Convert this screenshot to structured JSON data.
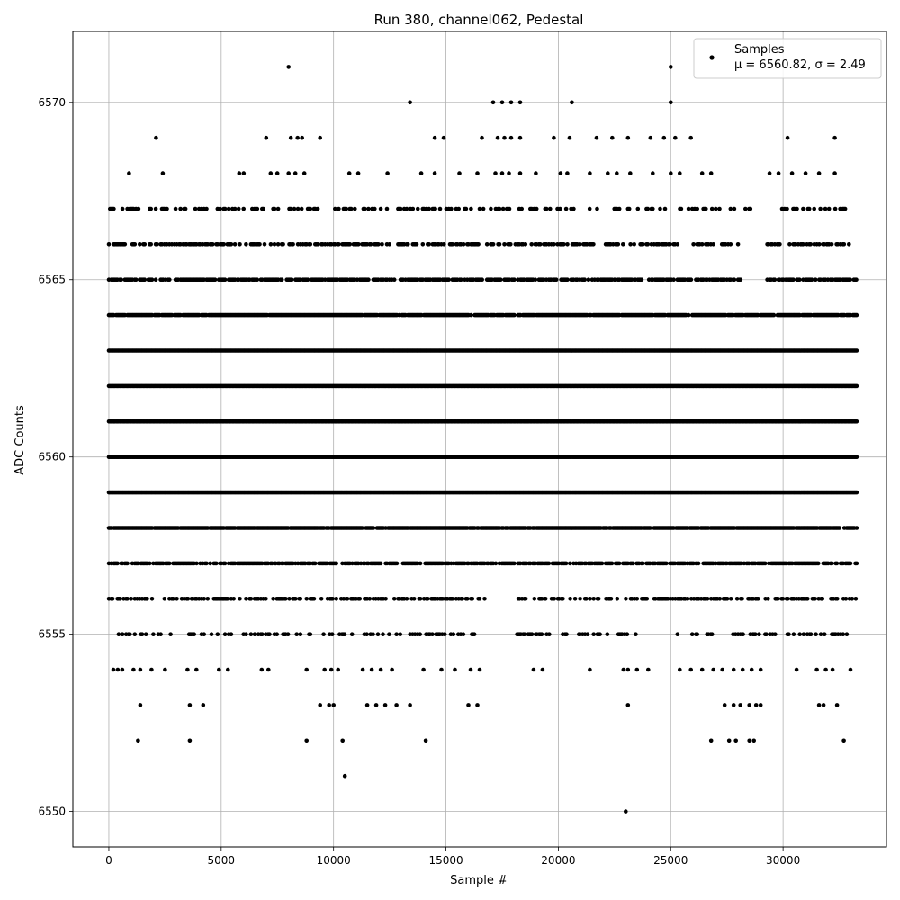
{
  "chart_data": {
    "type": "scatter",
    "title": "Run 380, channel062, Pedestal",
    "xlabel": "Sample #",
    "ylabel": "ADC Counts",
    "xlim": [
      -1600,
      34600
    ],
    "ylim": [
      6549,
      6572
    ],
    "xticks": [
      0,
      5000,
      10000,
      15000,
      20000,
      25000,
      30000
    ],
    "yticks": [
      6550,
      6555,
      6560,
      6565,
      6570
    ],
    "grid": true,
    "legend": {
      "placement": "top-right",
      "label": "Samples",
      "stats": "μ = 6560.82, σ = 2.49"
    },
    "marker_color": "#000000",
    "n_samples": 33300,
    "series": [
      {
        "name": "Samples",
        "levels": [
          {
            "y": 6559,
            "x_ranges": [
              [
                0,
                33300
              ]
            ]
          },
          {
            "y": 6560,
            "x_ranges": [
              [
                0,
                33300
              ]
            ]
          },
          {
            "y": 6561,
            "x_ranges": [
              [
                0,
                33300
              ]
            ]
          },
          {
            "y": 6562,
            "x_ranges": [
              [
                0,
                33300
              ]
            ]
          },
          {
            "y": 6563,
            "x_ranges": [
              [
                0,
                33300
              ]
            ]
          },
          {
            "y": 6558,
            "x_ranges": [
              [
                0,
                33300
              ]
            ]
          },
          {
            "y": 6564,
            "x_ranges": [
              [
                0,
                33300
              ]
            ]
          },
          {
            "y": 6557,
            "x_ranges": [
              [
                0,
                33300
              ]
            ]
          },
          {
            "y": 6565,
            "x_ranges": [
              [
                0,
                28200
              ],
              [
                29300,
                33300
              ]
            ]
          },
          {
            "y": 6556,
            "x_ranges": [
              [
                0,
                16800
              ],
              [
                18000,
                33300
              ]
            ]
          },
          {
            "y": 6566,
            "x_ranges": [
              [
                0,
                28000
              ],
              [
                29300,
                33000
              ]
            ]
          },
          {
            "y": 6555,
            "x_ranges": [
              [
                0,
                9000
              ],
              [
                9500,
                16500
              ],
              [
                18000,
                23800
              ],
              [
                25300,
                33200
              ]
            ]
          },
          {
            "y": 6567,
            "x_ranges": [
              [
                0,
                28600
              ],
              [
                29900,
                32800
              ]
            ]
          }
        ],
        "points": [
          [
            2100,
            6569
          ],
          [
            7000,
            6569
          ],
          [
            8100,
            6569
          ],
          [
            8400,
            6569
          ],
          [
            8600,
            6569
          ],
          [
            9400,
            6569
          ],
          [
            14500,
            6569
          ],
          [
            14900,
            6569
          ],
          [
            16600,
            6569
          ],
          [
            17300,
            6569
          ],
          [
            17600,
            6569
          ],
          [
            17900,
            6569
          ],
          [
            18300,
            6569
          ],
          [
            19800,
            6569
          ],
          [
            20500,
            6569
          ],
          [
            21700,
            6569
          ],
          [
            22400,
            6569
          ],
          [
            23100,
            6569
          ],
          [
            24100,
            6569
          ],
          [
            24700,
            6569
          ],
          [
            25200,
            6569
          ],
          [
            25900,
            6569
          ],
          [
            30200,
            6569
          ],
          [
            32300,
            6569
          ],
          [
            13400,
            6570
          ],
          [
            17100,
            6570
          ],
          [
            17500,
            6570
          ],
          [
            17900,
            6570
          ],
          [
            18300,
            6570
          ],
          [
            20600,
            6570
          ],
          [
            25000,
            6570
          ],
          [
            8000,
            6571
          ],
          [
            25000,
            6571
          ],
          [
            900,
            6568
          ],
          [
            2400,
            6568
          ],
          [
            5800,
            6568
          ],
          [
            6000,
            6568
          ],
          [
            7200,
            6568
          ],
          [
            7500,
            6568
          ],
          [
            8000,
            6568
          ],
          [
            8300,
            6568
          ],
          [
            8700,
            6568
          ],
          [
            10700,
            6568
          ],
          [
            11100,
            6568
          ],
          [
            12400,
            6568
          ],
          [
            13900,
            6568
          ],
          [
            14500,
            6568
          ],
          [
            15600,
            6568
          ],
          [
            16400,
            6568
          ],
          [
            17200,
            6568
          ],
          [
            17500,
            6568
          ],
          [
            17800,
            6568
          ],
          [
            18300,
            6568
          ],
          [
            19000,
            6568
          ],
          [
            20100,
            6568
          ],
          [
            20400,
            6568
          ],
          [
            21400,
            6568
          ],
          [
            22200,
            6568
          ],
          [
            22600,
            6568
          ],
          [
            23200,
            6568
          ],
          [
            24200,
            6568
          ],
          [
            25000,
            6568
          ],
          [
            25400,
            6568
          ],
          [
            26400,
            6568
          ],
          [
            26800,
            6568
          ],
          [
            29400,
            6568
          ],
          [
            29800,
            6568
          ],
          [
            30400,
            6568
          ],
          [
            31000,
            6568
          ],
          [
            31600,
            6568
          ],
          [
            32300,
            6568
          ],
          [
            200,
            6554
          ],
          [
            400,
            6554
          ],
          [
            600,
            6554
          ],
          [
            1100,
            6554
          ],
          [
            1400,
            6554
          ],
          [
            1900,
            6554
          ],
          [
            2500,
            6554
          ],
          [
            3500,
            6554
          ],
          [
            3900,
            6554
          ],
          [
            4900,
            6554
          ],
          [
            5300,
            6554
          ],
          [
            6800,
            6554
          ],
          [
            7100,
            6554
          ],
          [
            8800,
            6554
          ],
          [
            9600,
            6554
          ],
          [
            9900,
            6554
          ],
          [
            10200,
            6554
          ],
          [
            11300,
            6554
          ],
          [
            11700,
            6554
          ],
          [
            12100,
            6554
          ],
          [
            12600,
            6554
          ],
          [
            14000,
            6554
          ],
          [
            14800,
            6554
          ],
          [
            15400,
            6554
          ],
          [
            16100,
            6554
          ],
          [
            16500,
            6554
          ],
          [
            18900,
            6554
          ],
          [
            19300,
            6554
          ],
          [
            21400,
            6554
          ],
          [
            22900,
            6554
          ],
          [
            23100,
            6554
          ],
          [
            23500,
            6554
          ],
          [
            24000,
            6554
          ],
          [
            25400,
            6554
          ],
          [
            25900,
            6554
          ],
          [
            26400,
            6554
          ],
          [
            26900,
            6554
          ],
          [
            27300,
            6554
          ],
          [
            27800,
            6554
          ],
          [
            28200,
            6554
          ],
          [
            28600,
            6554
          ],
          [
            29000,
            6554
          ],
          [
            30600,
            6554
          ],
          [
            31500,
            6554
          ],
          [
            31900,
            6554
          ],
          [
            32200,
            6554
          ],
          [
            33000,
            6554
          ],
          [
            1400,
            6553
          ],
          [
            3600,
            6553
          ],
          [
            4200,
            6553
          ],
          [
            9400,
            6553
          ],
          [
            9800,
            6553
          ],
          [
            10000,
            6553
          ],
          [
            11500,
            6553
          ],
          [
            11900,
            6553
          ],
          [
            12300,
            6553
          ],
          [
            12800,
            6553
          ],
          [
            13400,
            6553
          ],
          [
            16000,
            6553
          ],
          [
            16400,
            6553
          ],
          [
            23100,
            6553
          ],
          [
            27400,
            6553
          ],
          [
            27800,
            6553
          ],
          [
            28100,
            6553
          ],
          [
            28500,
            6553
          ],
          [
            28800,
            6553
          ],
          [
            29000,
            6553
          ],
          [
            31600,
            6553
          ],
          [
            31800,
            6553
          ],
          [
            32400,
            6553
          ],
          [
            1300,
            6552
          ],
          [
            3600,
            6552
          ],
          [
            8800,
            6552
          ],
          [
            10400,
            6552
          ],
          [
            14100,
            6552
          ],
          [
            26800,
            6552
          ],
          [
            27600,
            6552
          ],
          [
            27900,
            6552
          ],
          [
            28500,
            6552
          ],
          [
            28700,
            6552
          ],
          [
            32700,
            6552
          ],
          [
            10500,
            6551
          ],
          [
            23000,
            6550
          ]
        ]
      }
    ]
  }
}
